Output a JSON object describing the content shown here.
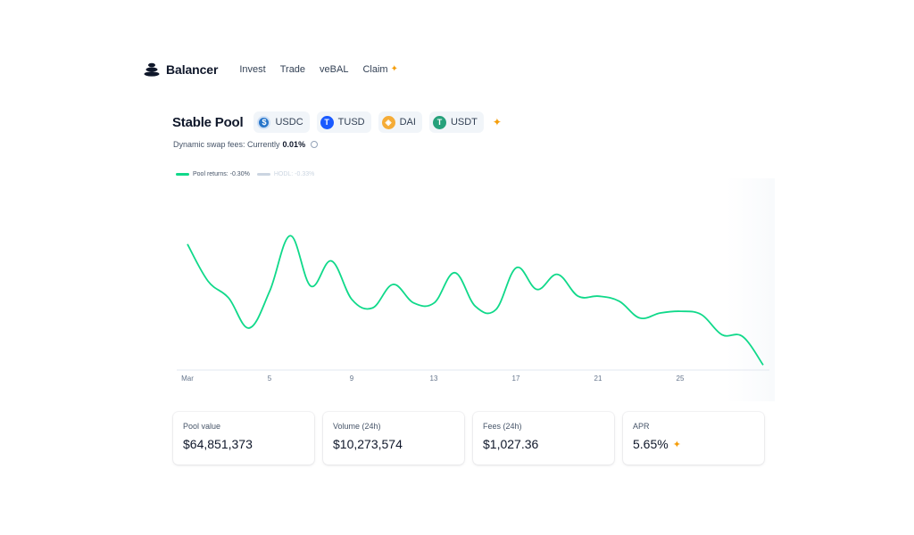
{
  "nav": {
    "brand": "Balancer",
    "links": [
      {
        "label": "Invest"
      },
      {
        "label": "Trade"
      },
      {
        "label": "veBAL"
      },
      {
        "label": "Claim",
        "sparkle": "✦"
      }
    ]
  },
  "pool": {
    "title": "Stable Pool",
    "tokens": [
      {
        "symbol": "USDC",
        "icon": "usdc-icon",
        "color": "#2775ca",
        "glyph": "$"
      },
      {
        "symbol": "TUSD",
        "icon": "tusd-icon",
        "color": "#1a5aff",
        "glyph": "T"
      },
      {
        "symbol": "DAI",
        "icon": "dai-icon",
        "color": "#f5ac37",
        "glyph": "◈"
      },
      {
        "symbol": "USDT",
        "icon": "usdt-icon",
        "color": "#26a17b",
        "glyph": "T"
      }
    ],
    "fees_prefix": "Dynamic swap fees: Currently",
    "fees_value": "0.01%"
  },
  "legend": {
    "pool_returns": "Pool returns: -0.30%",
    "hodl": "HODL: -0.33%",
    "pool_color": "#10d98a",
    "hodl_color": "#cbd5e1"
  },
  "chart_data": {
    "type": "line",
    "x_tick_labels": [
      "Mar",
      "5",
      "9",
      "13",
      "17",
      "21",
      "25"
    ],
    "series": [
      {
        "name": "Pool returns: -0.30%",
        "color": "#10d98a",
        "x": [
          1,
          2,
          3,
          4,
          5,
          6,
          7,
          8,
          9,
          10,
          11,
          12,
          13,
          14,
          15,
          16,
          17,
          18,
          19,
          20,
          21,
          22,
          23,
          24,
          25,
          26,
          27,
          28,
          29
        ],
        "values": [
          0.75,
          0.53,
          0.43,
          0.25,
          0.47,
          0.8,
          0.5,
          0.65,
          0.42,
          0.37,
          0.51,
          0.4,
          0.4,
          0.58,
          0.38,
          0.36,
          0.61,
          0.48,
          0.57,
          0.44,
          0.44,
          0.41,
          0.31,
          0.34,
          0.35,
          0.33,
          0.21,
          0.2,
          0.03
        ]
      }
    ]
  },
  "stats": [
    {
      "label": "Pool value",
      "value": "$64,851,373"
    },
    {
      "label": "Volume (24h)",
      "value": "$10,273,574"
    },
    {
      "label": "Fees (24h)",
      "value": "$1,027.36"
    },
    {
      "label": "APR",
      "value": "5.65%",
      "sparkle": "✦"
    }
  ]
}
